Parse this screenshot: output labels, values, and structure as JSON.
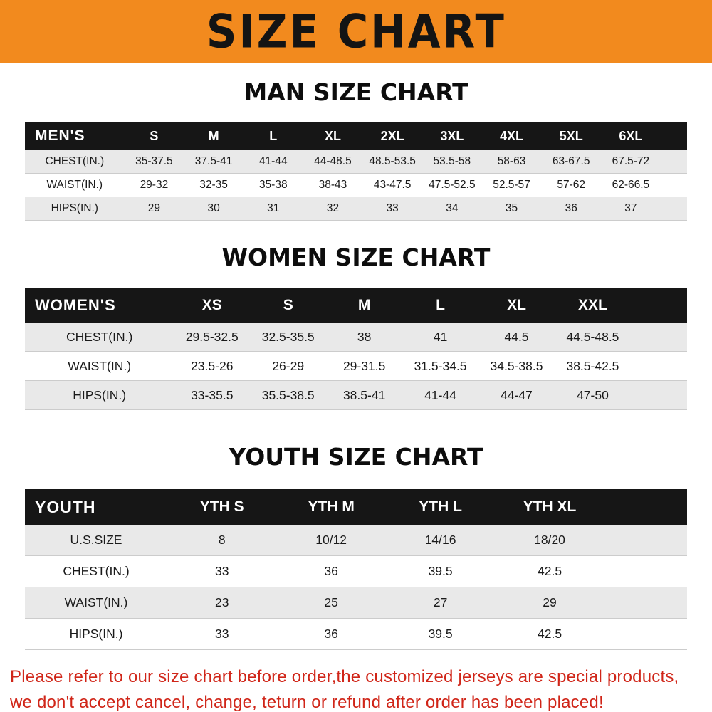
{
  "banner": {
    "title": "SIZE CHART"
  },
  "colors": {
    "banner_bg": "#F28A1E",
    "table_header_bg": "#161616",
    "row_stripe": "#e9e9e9",
    "footer_text": "#D02518"
  },
  "sections": [
    {
      "id": "man",
      "heading": "MAN SIZE CHART",
      "table": {
        "header": [
          "MEN'S",
          "S",
          "M",
          "L",
          "XL",
          "2XL",
          "3XL",
          "4XL",
          "5XL",
          "6XL"
        ],
        "rows": [
          [
            "CHEST(IN.)",
            "35-37.5",
            "37.5-41",
            "41-44",
            "44-48.5",
            "48.5-53.5",
            "53.5-58",
            "58-63",
            "63-67.5",
            "67.5-72"
          ],
          [
            "WAIST(IN.)",
            "29-32",
            "32-35",
            "35-38",
            "38-43",
            "43-47.5",
            "47.5-52.5",
            "52.5-57",
            "57-62",
            "62-66.5"
          ],
          [
            "HIPS(IN.)",
            "29",
            "30",
            "31",
            "32",
            "33",
            "34",
            "35",
            "36",
            "37"
          ]
        ]
      }
    },
    {
      "id": "women",
      "heading": "WOMEN SIZE CHART",
      "table": {
        "header": [
          "WOMEN'S",
          "XS",
          "S",
          "M",
          "L",
          "XL",
          "XXL"
        ],
        "rows": [
          [
            "CHEST(IN.)",
            "29.5-32.5",
            "32.5-35.5",
            "38",
            "41",
            "44.5",
            "44.5-48.5"
          ],
          [
            "WAIST(IN.)",
            "23.5-26",
            "26-29",
            "29-31.5",
            "31.5-34.5",
            "34.5-38.5",
            "38.5-42.5"
          ],
          [
            "HIPS(IN.)",
            "33-35.5",
            "35.5-38.5",
            "38.5-41",
            "41-44",
            "44-47",
            "47-50"
          ]
        ]
      }
    },
    {
      "id": "youth",
      "heading": "YOUTH SIZE CHART",
      "table": {
        "header": [
          "YOUTH",
          "YTH S",
          "YTH M",
          "YTH L",
          "YTH XL"
        ],
        "rows": [
          [
            "U.S.SIZE",
            "8",
            "10/12",
            "14/16",
            "18/20"
          ],
          [
            "CHEST(IN.)",
            "33",
            "36",
            "39.5",
            "42.5"
          ],
          [
            "WAIST(IN.)",
            "23",
            "25",
            "27",
            "29"
          ],
          [
            "HIPS(IN.)",
            "33",
            "36",
            "39.5",
            "42.5"
          ]
        ]
      }
    }
  ],
  "footer": {
    "line1": "Please refer to our size chart before order,the customized jerseys are special products,",
    "line2": "we don't accept cancel, change, teturn or refund after order has been placed!"
  }
}
